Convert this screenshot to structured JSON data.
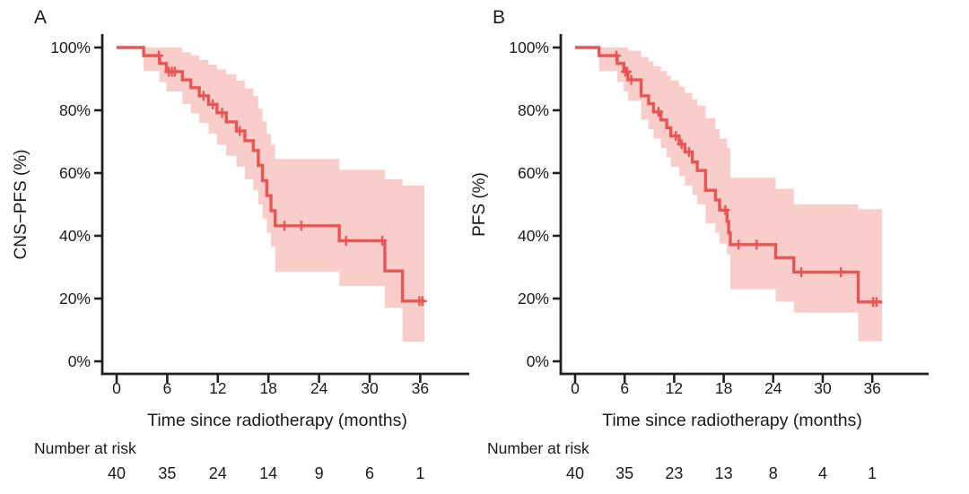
{
  "figure": {
    "background": "#ffffff",
    "text_color": "#1a1a1a",
    "axis_color": "#202020"
  },
  "chart_data": [
    {
      "type": "line",
      "subtype": "kaplan-meier-step",
      "panel_label": "A",
      "ylabel": "CNS−PFS (%)",
      "xlabel": "Time since radiotherapy (months)",
      "risk_title": "Number at risk",
      "x_ticks": [
        0,
        6,
        12,
        18,
        24,
        30,
        36
      ],
      "y_tick_labels": [
        "100%",
        "80%",
        "60%",
        "40%",
        "20%",
        "0%"
      ],
      "y_tick_values": [
        100,
        80,
        60,
        40,
        20,
        0
      ],
      "xlim": [
        0,
        42
      ],
      "ylim": [
        0,
        100
      ],
      "grid": false,
      "legend": false,
      "curve_color": "#e85555",
      "band_color": "#f9cdca",
      "end_time": 36.5,
      "survival_steps": [
        [
          0,
          100
        ],
        [
          3.2,
          97.4
        ],
        [
          5.1,
          94.9
        ],
        [
          5.9,
          92.3
        ],
        [
          7.8,
          89.7
        ],
        [
          8.8,
          87.2
        ],
        [
          9.8,
          84.6
        ],
        [
          10.9,
          81.9
        ],
        [
          11.9,
          79.2
        ],
        [
          13.0,
          76.3
        ],
        [
          14.2,
          73.4
        ],
        [
          15.2,
          70.3
        ],
        [
          16.2,
          67.2
        ],
        [
          16.8,
          62.4
        ],
        [
          17.3,
          57.6
        ],
        [
          17.8,
          52.8
        ],
        [
          18.3,
          48.0
        ],
        [
          18.8,
          43.2
        ],
        [
          26.4,
          38.4
        ],
        [
          31.8,
          28.8
        ],
        [
          33.9,
          19.2
        ]
      ],
      "censor_marks": [
        [
          5.0,
          97.4
        ],
        [
          6.2,
          92.3
        ],
        [
          6.55,
          92.3
        ],
        [
          6.9,
          92.3
        ],
        [
          10.3,
          84.6
        ],
        [
          11.4,
          81.9
        ],
        [
          12.5,
          79.2
        ],
        [
          14.6,
          73.4
        ],
        [
          19.9,
          43.2
        ],
        [
          21.9,
          43.2
        ],
        [
          27.2,
          38.4
        ],
        [
          31.5,
          38.4
        ],
        [
          35.9,
          19.2
        ],
        [
          36.25,
          19.2
        ]
      ],
      "confidence_band": [
        [
          3.2,
          92.5,
          100
        ],
        [
          5.1,
          89,
          100
        ],
        [
          5.9,
          86,
          100
        ],
        [
          7.8,
          82,
          98.5
        ],
        [
          8.8,
          79,
          97.5
        ],
        [
          9.8,
          76,
          96
        ],
        [
          10.9,
          72.5,
          94.5
        ],
        [
          11.9,
          69,
          93
        ],
        [
          13.0,
          65.5,
          91.5
        ],
        [
          14.2,
          62,
          89.5
        ],
        [
          15.2,
          58,
          87
        ],
        [
          16.2,
          54.5,
          84.5
        ],
        [
          16.8,
          50,
          80.5
        ],
        [
          17.3,
          45.5,
          76.5
        ],
        [
          17.8,
          41,
          72.5
        ],
        [
          18.3,
          36.5,
          69
        ],
        [
          18.8,
          28.5,
          64.5
        ],
        [
          26.4,
          24,
          61
        ],
        [
          31.8,
          17,
          58
        ],
        [
          33.9,
          6.3,
          56
        ]
      ],
      "number_at_risk": [
        40,
        35,
        24,
        14,
        9,
        6,
        1
      ]
    },
    {
      "type": "line",
      "subtype": "kaplan-meier-step",
      "panel_label": "B",
      "ylabel": "PFS (%)",
      "xlabel": "Time since radiotherapy (months)",
      "risk_title": "Number at risk",
      "x_ticks": [
        0,
        6,
        12,
        18,
        24,
        30,
        36
      ],
      "y_tick_labels": [
        "100%",
        "80%",
        "60%",
        "40%",
        "20%",
        "0%"
      ],
      "y_tick_values": [
        100,
        80,
        60,
        40,
        20,
        0
      ],
      "xlim": [
        0,
        42
      ],
      "ylim": [
        0,
        100
      ],
      "grid": false,
      "legend": false,
      "curve_color": "#e85555",
      "band_color": "#f9cdca",
      "end_time": 37.2,
      "survival_steps": [
        [
          0,
          100
        ],
        [
          2.9,
          97.4
        ],
        [
          5.1,
          94.9
        ],
        [
          5.9,
          92.3
        ],
        [
          6.4,
          89.7
        ],
        [
          8.0,
          84.6
        ],
        [
          8.9,
          82.1
        ],
        [
          9.5,
          79.5
        ],
        [
          10.4,
          76.9
        ],
        [
          11.1,
          74.4
        ],
        [
          11.6,
          71.8
        ],
        [
          12.6,
          69.2
        ],
        [
          13.3,
          66.7
        ],
        [
          14.2,
          63.5
        ],
        [
          14.8,
          60.8
        ],
        [
          15.8,
          54.5
        ],
        [
          17.0,
          51.4
        ],
        [
          17.5,
          48.2
        ],
        [
          18.4,
          44.6
        ],
        [
          18.6,
          40.9
        ],
        [
          18.8,
          37.2
        ],
        [
          24.3,
          33.0
        ],
        [
          26.5,
          28.4
        ],
        [
          34.3,
          18.9
        ]
      ],
      "censor_marks": [
        [
          5.0,
          97.4
        ],
        [
          6.1,
          92.3
        ],
        [
          6.3,
          92.3
        ],
        [
          6.8,
          89.7
        ],
        [
          10.1,
          79.5
        ],
        [
          12.2,
          71.8
        ],
        [
          12.9,
          69.2
        ],
        [
          13.8,
          66.7
        ],
        [
          18.2,
          48.2
        ],
        [
          19.8,
          37.2
        ],
        [
          22.0,
          37.2
        ],
        [
          27.4,
          28.4
        ],
        [
          32.2,
          28.4
        ],
        [
          36.1,
          18.9
        ],
        [
          36.5,
          18.9
        ]
      ],
      "confidence_band": [
        [
          2.9,
          92.5,
          100
        ],
        [
          5.1,
          89,
          100
        ],
        [
          5.9,
          86,
          100
        ],
        [
          6.4,
          83,
          99
        ],
        [
          8.0,
          77,
          97
        ],
        [
          8.9,
          74,
          95.5
        ],
        [
          9.5,
          71,
          94
        ],
        [
          10.4,
          68,
          92.5
        ],
        [
          11.1,
          65,
          91
        ],
        [
          11.6,
          62,
          89.5
        ],
        [
          12.6,
          59,
          87.5
        ],
        [
          13.3,
          56,
          85.5
        ],
        [
          14.2,
          53,
          83.5
        ],
        [
          14.8,
          50,
          81.5
        ],
        [
          15.8,
          44,
          77.5
        ],
        [
          17.0,
          41,
          74
        ],
        [
          17.5,
          37.5,
          71
        ],
        [
          18.4,
          34,
          68
        ],
        [
          18.8,
          23,
          58.5
        ],
        [
          24.3,
          19,
          55
        ],
        [
          26.5,
          15.5,
          50
        ],
        [
          34.3,
          6.4,
          48.5
        ]
      ],
      "number_at_risk": [
        40,
        35,
        23,
        13,
        8,
        4,
        1
      ]
    }
  ]
}
